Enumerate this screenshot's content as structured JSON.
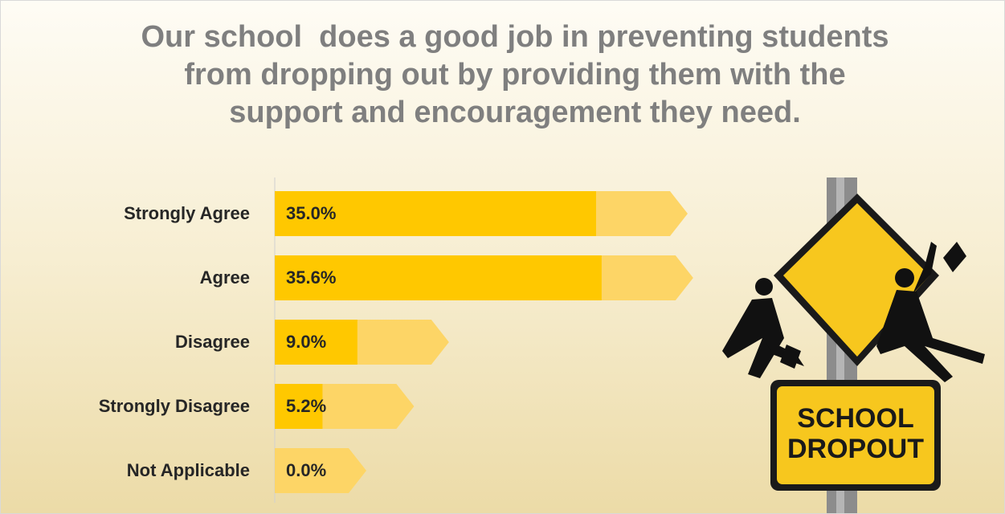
{
  "chart_data": {
    "type": "bar",
    "orientation": "horizontal",
    "title": "Our school  does a good job in preventing students from dropping out by providing them with the support and encouragement they need.",
    "categories": [
      "Strongly Agree",
      "Agree",
      "Disagree",
      "Strongly Disagree",
      "Not Applicable"
    ],
    "values": [
      35.0,
      35.6,
      9.0,
      5.2,
      0.0
    ],
    "value_labels": [
      "35.0%",
      "35.6%",
      "9.0%",
      "5.2%",
      "0.0%"
    ],
    "color": "#ffc800",
    "arrow_color": "#fdd566"
  },
  "illustration": {
    "sign_text": [
      "SCHOOL",
      "DROPOUT"
    ]
  }
}
